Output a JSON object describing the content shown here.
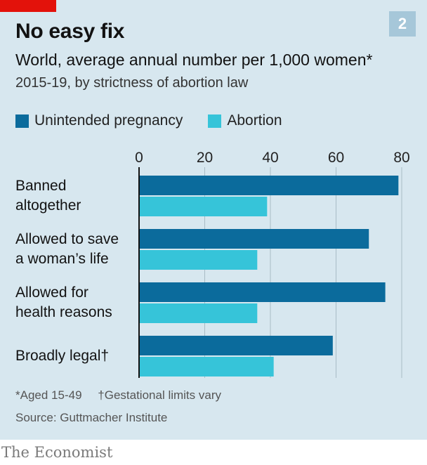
{
  "header": {
    "title": "No easy fix",
    "subtitle": "World, average annual number per 1,000 women*",
    "subtitle2": "2015-19, by strictness of abortion law",
    "chart_number": "2"
  },
  "legend": [
    {
      "label": "Unintended pregnancy",
      "color": "#0b6b9c"
    },
    {
      "label": "Abortion",
      "color": "#36c4d9"
    }
  ],
  "footnotes": {
    "note1": "*Aged 15-49",
    "note2": "†Gestational limits vary",
    "source": "Source: Guttmacher Institute"
  },
  "brand": "The Economist",
  "chart_data": {
    "type": "bar",
    "orientation": "horizontal",
    "categories": [
      "Banned\naltogether",
      "Allowed to save\na woman’s life",
      "Allowed for\nhealth reasons",
      "Broadly legal†"
    ],
    "series": [
      {
        "name": "Unintended pregnancy",
        "values": [
          79,
          70,
          75,
          59
        ],
        "color": "#0b6b9c"
      },
      {
        "name": "Abortion",
        "values": [
          39,
          36,
          36,
          41
        ],
        "color": "#36c4d9"
      }
    ],
    "xlim": [
      0,
      80
    ],
    "xticks": [
      0,
      20,
      40,
      60,
      80
    ],
    "grid": true
  }
}
